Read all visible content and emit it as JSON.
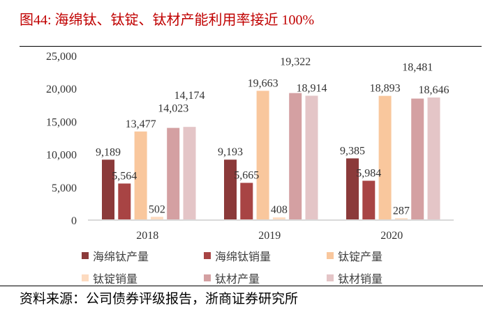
{
  "title": "图44:   海绵钛、钛锭、钛材产能利用率接近 100%",
  "source": "资料来源：公司债券评级报告，浙商证券研究所",
  "chart_data": {
    "type": "bar",
    "title": "",
    "xlabel": "",
    "ylabel": "",
    "ylim": [
      0,
      25000
    ],
    "yticks": [
      "0",
      "5,000",
      "10,000",
      "15,000",
      "20,000",
      "25,000"
    ],
    "grid": false,
    "legend_position": "bottom",
    "categories": [
      "2018",
      "2019",
      "2020"
    ],
    "series": [
      {
        "name": "海绵钛产量",
        "color": "#8B3A3A",
        "values": [
          9189,
          9193,
          9385
        ],
        "labels": [
          "9,189",
          "9,193",
          "9,385"
        ]
      },
      {
        "name": "海绵钛销量",
        "color": "#A84444",
        "values": [
          5564,
          5665,
          5984
        ],
        "labels": [
          "5,564",
          "5,665",
          "5,984"
        ]
      },
      {
        "name": "钛锭产量",
        "color": "#F9C79D",
        "values": [
          13477,
          19663,
          18893
        ],
        "labels": [
          "13,477",
          "19,663",
          "18,893"
        ]
      },
      {
        "name": "钛锭销量",
        "color": "#FDDBC0",
        "values": [
          502,
          408,
          287
        ],
        "labels": [
          "502",
          "408",
          "287"
        ]
      },
      {
        "name": "钛材产量",
        "color": "#D4A0A2",
        "values": [
          14023,
          19322,
          18481
        ],
        "labels": [
          "14,023",
          "19,322",
          "18,481"
        ]
      },
      {
        "name": "钛材销量",
        "color": "#E4C5C7",
        "values": [
          14174,
          18914,
          18646
        ],
        "labels": [
          "14,174",
          "18,914",
          "18,646"
        ]
      }
    ]
  }
}
